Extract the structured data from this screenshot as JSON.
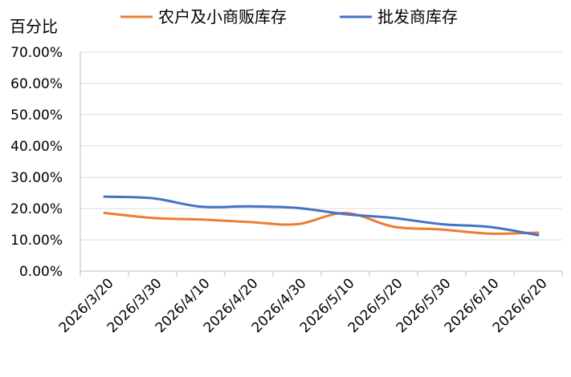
{
  "chart_data": {
    "type": "line",
    "ylabel": "百分比",
    "ylim": [
      0,
      70
    ],
    "y_ticks": [
      "0.00%",
      "10.00%",
      "20.00%",
      "30.00%",
      "40.00%",
      "50.00%",
      "60.00%",
      "70.00%"
    ],
    "x_ticks": [
      "2026/3/20",
      "2026/3/30",
      "2026/4/10",
      "2026/4/20",
      "2026/4/30",
      "2026/5/10",
      "2026/5/20",
      "2026/5/30",
      "2026/6/10",
      "2026/6/20"
    ],
    "x": [
      "2026/3/20",
      "2026/3/30",
      "2026/4/10",
      "2026/4/20",
      "2026/4/30",
      "2026/5/10",
      "2026/5/20",
      "2026/5/30",
      "2026/6/10",
      "2026/6/20"
    ],
    "grid": "horizontal",
    "legend_position": "top",
    "series": [
      {
        "name": "农户及小商贩库存",
        "color": "#ED7D31",
        "values": [
          18.6,
          17.0,
          16.5,
          15.7,
          15.0,
          18.6,
          14.2,
          13.3,
          12.0,
          12.3
        ]
      },
      {
        "name": "批发商库存",
        "color": "#4472C4",
        "values": [
          23.8,
          23.3,
          20.6,
          20.7,
          20.2,
          18.2,
          17.0,
          15.0,
          14.1,
          11.5
        ]
      }
    ]
  }
}
